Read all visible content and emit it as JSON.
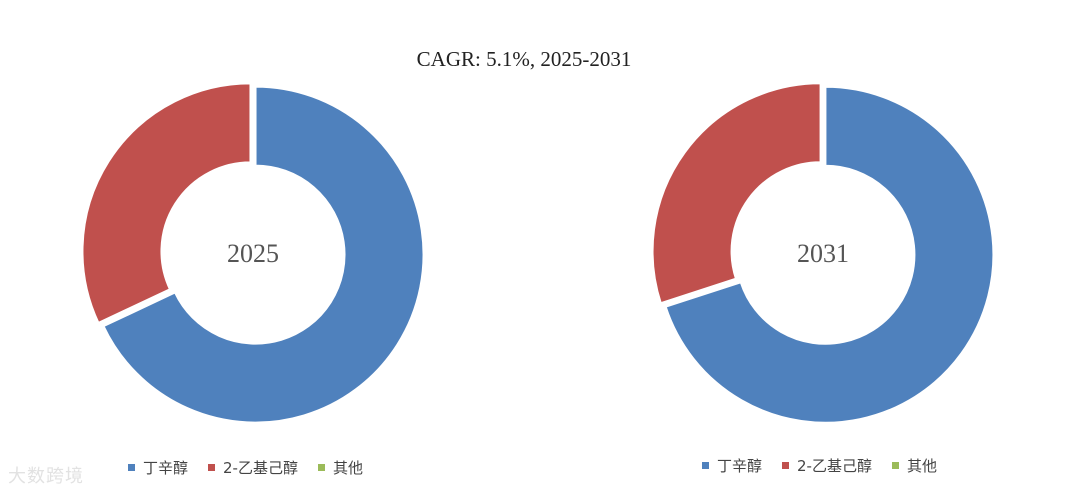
{
  "title": "CAGR:   5.1%, 2025-2031",
  "chart_data": [
    {
      "type": "pie",
      "subtype": "donut",
      "center_label": "2025",
      "categories": [
        "丁辛醇",
        "2-乙基己醇",
        "其他"
      ],
      "values": [
        68,
        32,
        0
      ],
      "colors": [
        "#4F81BD",
        "#C0504D",
        "#9BBB59"
      ],
      "legend_position": "bottom"
    },
    {
      "type": "pie",
      "subtype": "donut",
      "center_label": "2031",
      "categories": [
        "丁辛醇",
        "2-乙基己醇",
        "其他"
      ],
      "values": [
        70,
        30,
        0
      ],
      "colors": [
        "#4F81BD",
        "#C0504D",
        "#9BBB59"
      ],
      "legend_position": "bottom"
    }
  ],
  "watermark": "大数跨境"
}
